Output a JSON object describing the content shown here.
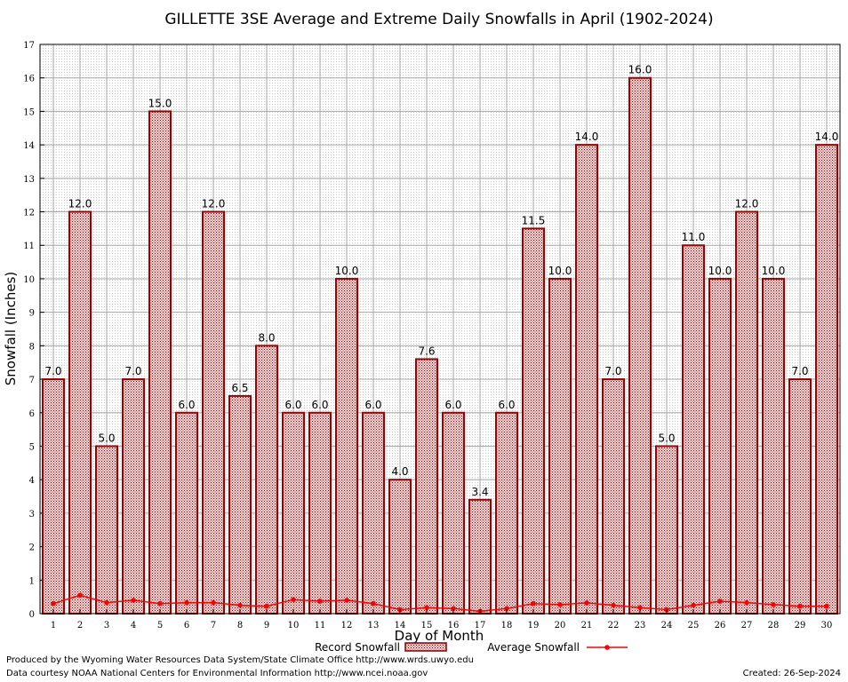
{
  "chart_data": {
    "type": "bar",
    "title": "GILLETTE 3SE Average and Extreme Daily Snowfalls in April (1902-2024)",
    "xlabel": "Day of Month",
    "ylabel": "Snowfall (Inches)",
    "ylim": [
      0,
      17
    ],
    "yticks": [
      "0",
      "1",
      "2",
      "3",
      "4",
      "5",
      "6",
      "7",
      "8",
      "9",
      "10",
      "11",
      "12",
      "13",
      "14",
      "15",
      "16",
      "17"
    ],
    "categories": [
      "1",
      "2",
      "3",
      "4",
      "5",
      "6",
      "7",
      "8",
      "9",
      "10",
      "11",
      "12",
      "13",
      "14",
      "15",
      "16",
      "17",
      "18",
      "19",
      "20",
      "21",
      "22",
      "23",
      "24",
      "25",
      "26",
      "27",
      "28",
      "29",
      "30"
    ],
    "grid": true,
    "legend_position": "bottom",
    "series": [
      {
        "name": "Record Snowfall",
        "kind": "bar",
        "color": "#a00000",
        "values": [
          7.0,
          12.0,
          5.0,
          7.0,
          15.0,
          6.0,
          12.0,
          6.5,
          8.0,
          6.0,
          6.0,
          10.0,
          6.0,
          4.0,
          7.6,
          6.0,
          3.4,
          6.0,
          11.5,
          10.0,
          14.0,
          7.0,
          16.0,
          5.0,
          11.0,
          10.0,
          12.0,
          10.0,
          7.0,
          14.0
        ],
        "labels": [
          "7.0",
          "12.0",
          "5.0",
          "7.0",
          "15.0",
          "6.0",
          "12.0",
          "6.5",
          "8.0",
          "6.0",
          "6.0",
          "10.0",
          "6.0",
          "4.0",
          "7.6",
          "6.0",
          "3.4",
          "6.0",
          "11.5",
          "10.0",
          "14.0",
          "7.0",
          "16.0",
          "5.0",
          "11.0",
          "10.0",
          "12.0",
          "10.0",
          "7.0",
          "14.0"
        ]
      },
      {
        "name": "Average Snowfall",
        "kind": "line",
        "color": "#ff0000",
        "values": [
          0.3,
          0.55,
          0.33,
          0.4,
          0.3,
          0.33,
          0.33,
          0.25,
          0.22,
          0.42,
          0.37,
          0.4,
          0.3,
          0.12,
          0.18,
          0.15,
          0.07,
          0.15,
          0.3,
          0.27,
          0.32,
          0.25,
          0.18,
          0.12,
          0.25,
          0.37,
          0.33,
          0.27,
          0.22,
          0.22
        ]
      }
    ]
  },
  "footer": {
    "producer": "Produced by the Wyoming Water Resources Data System/State Climate Office http://www.wrds.uwyo.edu",
    "courtesy": "Data courtesy NOAA National Centers for Environmental Information http://www.ncei.noaa.gov",
    "created": "Created:  26-Sep-2024"
  }
}
